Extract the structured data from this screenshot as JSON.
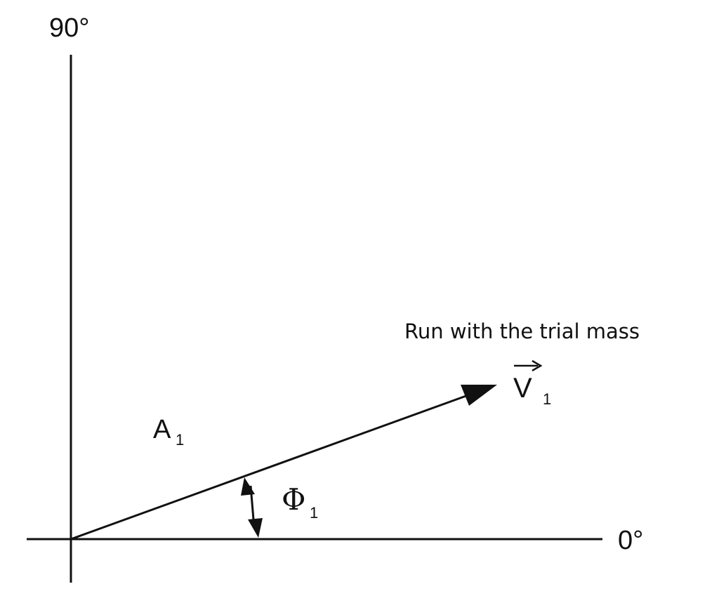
{
  "axes": {
    "vertical_label": "90°",
    "horizontal_label": "0°"
  },
  "vector": {
    "caption": "Run with the trial mass",
    "name": "V",
    "subscript": "1",
    "amplitude_label": "A",
    "amplitude_subscript": "1"
  },
  "phase": {
    "label": "Φ",
    "subscript": "1"
  },
  "colors": {
    "ink": "#111111",
    "background": "#ffffff"
  }
}
